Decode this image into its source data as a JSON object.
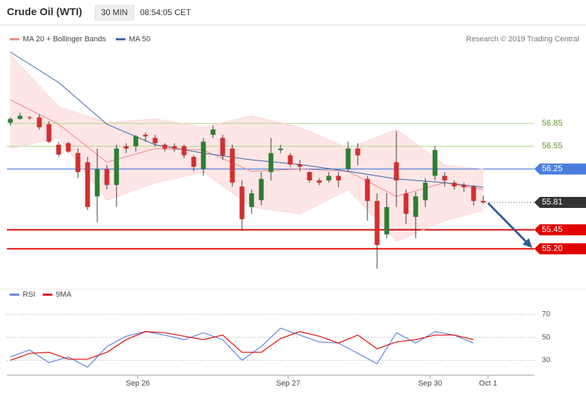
{
  "header": {
    "title": "Crude Oil (WTI)",
    "interval": "30 MIN",
    "time": "08:54:05 CET"
  },
  "chart_data": [
    {
      "type": "candlestick",
      "legend": [
        "MA 20 + Bollinger Bands",
        "MA 50"
      ],
      "copyright": "Research © 2019 Trading Central",
      "xlim": [
        -0.36,
        54.29
      ],
      "ylim": [
        54.75,
        57.85
      ],
      "xticks": [
        {
          "value": 13.21,
          "label": "Sep 26"
        },
        {
          "value": 28.79,
          "label": "Sep 27"
        },
        {
          "value": 43.5,
          "label": "Sep 30"
        },
        {
          "value": 49.5,
          "label": "Oct 1"
        }
      ],
      "up_color": "#2e7d32",
      "down_color": "#d32f2f",
      "open": [
        56.86,
        56.91,
        56.93,
        56.93,
        56.84,
        56.57,
        56.59,
        56.46,
        56.34,
        55.89,
        56.25,
        56.04,
        56.55,
        56.55,
        56.7,
        56.66,
        56.57,
        56.55,
        56.55,
        56.41,
        56.25,
        56.7,
        56.66,
        56.52,
        56.02,
        55.75,
        55.84,
        56.21,
        56.5,
        56.43,
        56.31,
        56.21,
        56.1,
        56.1,
        56.16,
        56.25,
        56.52,
        56.12,
        55.83,
        55.39,
        56.34,
        55.93,
        55.62,
        55.84,
        56.16,
        56.16,
        56.07,
        56.04,
        56.02,
        55.83
      ],
      "high": [
        56.93,
        56.99,
        56.95,
        56.97,
        56.88,
        56.61,
        56.61,
        56.52,
        56.41,
        56.52,
        56.3,
        56.57,
        56.59,
        56.7,
        56.73,
        56.7,
        56.59,
        56.59,
        56.57,
        56.43,
        56.66,
        56.82,
        56.7,
        56.57,
        56.1,
        55.98,
        56.21,
        56.66,
        56.57,
        56.46,
        56.37,
        56.22,
        56.13,
        56.21,
        56.21,
        56.61,
        56.59,
        56.16,
        55.93,
        55.93,
        56.75,
        55.98,
        55.95,
        56.13,
        56.55,
        56.21,
        56.1,
        56.07,
        56.04,
        55.9
      ],
      "low": [
        56.82,
        56.9,
        56.9,
        56.77,
        56.59,
        56.41,
        56.46,
        56.13,
        55.71,
        55.55,
        55.98,
        55.75,
        56.46,
        56.48,
        56.61,
        56.55,
        56.48,
        56.48,
        56.39,
        56.22,
        56.16,
        56.66,
        56.37,
        56.02,
        55.44,
        55.66,
        55.77,
        56.1,
        56.46,
        56.28,
        56.22,
        56.07,
        56.04,
        56.07,
        56.01,
        56.21,
        56.3,
        55.57,
        54.94,
        55.34,
        55.75,
        55.53,
        55.34,
        55.75,
        56.1,
        56.02,
        55.98,
        55.95,
        55.77,
        55.79
      ],
      "close": [
        56.91,
        56.95,
        56.92,
        56.8,
        56.61,
        56.44,
        56.48,
        56.21,
        55.75,
        56.25,
        56.04,
        56.52,
        56.52,
        56.68,
        56.68,
        56.59,
        56.52,
        56.52,
        56.43,
        56.28,
        56.61,
        56.77,
        56.43,
        56.07,
        55.59,
        55.93,
        56.12,
        56.46,
        56.52,
        56.31,
        56.28,
        56.1,
        56.07,
        56.16,
        56.1,
        56.52,
        56.43,
        55.83,
        55.25,
        55.75,
        56.1,
        55.66,
        55.89,
        56.07,
        56.5,
        56.1,
        56.02,
        56.01,
        55.83,
        55.81
      ],
      "indicators": {
        "x": [
          0,
          5,
          10,
          15,
          20,
          25,
          30,
          35,
          40,
          45,
          49
        ],
        "ma20": {
          "color": "#f08080",
          "values": [
            57.16,
            56.84,
            56.34,
            56.52,
            56.5,
            56.22,
            56.25,
            56.22,
            55.89,
            56.07,
            55.98
          ]
        },
        "bb_upper": {
          "color": "#fdd5d5",
          "values": [
            57.75,
            57.07,
            56.86,
            56.91,
            56.8,
            56.95,
            56.8,
            56.52,
            56.77,
            56.3,
            56.25
          ]
        },
        "bb_lower": {
          "color": "#fdd5d5",
          "values": [
            56.52,
            56.66,
            55.84,
            56.07,
            56.21,
            55.75,
            55.66,
            55.98,
            55.3,
            55.57,
            55.71
          ]
        },
        "ma50": {
          "color": "#2f5f9e",
          "values": [
            57.79,
            57.39,
            56.84,
            56.57,
            56.46,
            56.37,
            56.31,
            56.22,
            56.12,
            56.07,
            56.01
          ]
        }
      },
      "price_levels": {
        "values": [
          56.85,
          56.55,
          56.25,
          55.81,
          55.45,
          55.2
        ],
        "value_labels": [
          "56.85",
          "56.55",
          "56.25",
          "55.81",
          "55.45",
          "55.20"
        ],
        "colors": [
          "#b5d88f",
          "#b5d88f",
          "#4a7fe0",
          "#333333",
          "#e00000",
          "#e00000"
        ],
        "label_styles": [
          "text",
          "text",
          "box",
          "box",
          "box",
          "box"
        ],
        "line_styles": [
          "solid",
          "solid",
          "solid",
          "dotted",
          "solid",
          "solid"
        ]
      }
    },
    {
      "type": "line",
      "xlim": [
        -0.36,
        54.29
      ],
      "ylim": [
        20,
        80
      ],
      "yticks": [
        30,
        50,
        70
      ],
      "grid": true,
      "x": [
        0,
        2,
        4,
        6,
        8,
        10,
        12,
        14,
        16,
        18,
        20,
        22,
        24,
        26,
        28,
        30,
        32,
        34,
        36,
        38,
        40,
        42,
        44,
        46,
        48
      ],
      "series": [
        {
          "name": "RSI",
          "color": "#5b7fe0",
          "values": [
            33,
            39,
            28,
            33,
            24,
            42,
            51,
            55,
            52,
            48,
            54,
            48,
            30,
            42,
            58,
            52,
            46,
            45,
            36,
            27,
            54,
            45,
            55,
            52,
            45
          ]
        },
        {
          "name": "9MA",
          "color": "#e00000",
          "values": [
            30,
            36,
            37,
            31,
            31,
            37,
            48,
            55,
            54,
            51,
            48,
            52,
            37,
            37,
            49,
            55,
            51,
            45,
            52,
            40,
            46,
            48,
            52,
            52,
            48
          ]
        }
      ]
    }
  ]
}
